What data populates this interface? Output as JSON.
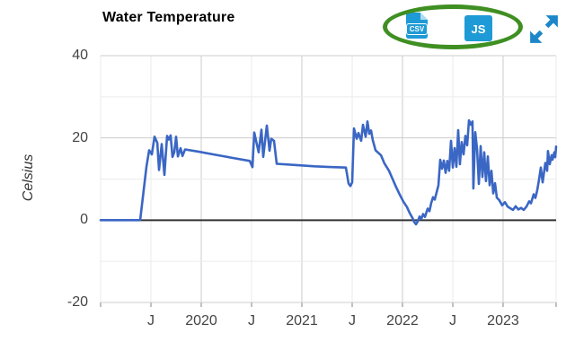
{
  "header": {
    "title": "Water Temperature"
  },
  "toolbar": {
    "csv_icon_label": "CSV",
    "js_icon_label": "JS",
    "icons": [
      "csv-file-icon",
      "js-file-icon",
      "expand-icon"
    ]
  },
  "colors": {
    "line": "#3a66c4",
    "grid_major": "#cccccc",
    "grid_minor": "#ebebeb",
    "zero_axis": "#333333",
    "label": "#444444",
    "icon_blue": "#1e9ad6",
    "expand_blue": "#1c86c8",
    "annotation_green": "#3f8f22",
    "title": "#000000",
    "tick": "#808080"
  },
  "chart_data": {
    "type": "line",
    "title": "Water Temperature",
    "xlabel": "",
    "ylabel": "Celsius",
    "xlim": [
      2019.0,
      2023.527
    ],
    "ylim": [
      -20,
      40
    ],
    "grid": true,
    "legend": "none",
    "y_ticks": [
      {
        "v": 40,
        "label": "40"
      },
      {
        "v": 20,
        "label": "20"
      },
      {
        "v": 0,
        "label": "0"
      },
      {
        "v": -20,
        "label": "-20"
      }
    ],
    "x_ticks": [
      {
        "t": 2019.5,
        "label": "J"
      },
      {
        "t": 2020.0,
        "label": "2020"
      },
      {
        "t": 2020.5,
        "label": "J"
      },
      {
        "t": 2021.0,
        "label": "2021"
      },
      {
        "t": 2021.5,
        "label": "J"
      },
      {
        "t": 2022.0,
        "label": "2022"
      },
      {
        "t": 2022.5,
        "label": "J"
      },
      {
        "t": 2023.0,
        "label": "2023"
      }
    ],
    "y_gridlines": [
      {
        "v": 40,
        "weight": "major"
      },
      {
        "v": 30,
        "weight": "minor"
      },
      {
        "v": 20,
        "weight": "major"
      },
      {
        "v": 10,
        "weight": "minor"
      },
      {
        "v": 0,
        "weight": "axis"
      },
      {
        "v": -10,
        "weight": "minor"
      },
      {
        "v": -20,
        "weight": "major"
      }
    ],
    "x_gridlines": [
      {
        "t": 2019.0,
        "weight": "minor"
      },
      {
        "t": 2019.5,
        "weight": "minor"
      },
      {
        "t": 2020.0,
        "weight": "major"
      },
      {
        "t": 2020.5,
        "weight": "minor"
      },
      {
        "t": 2021.0,
        "weight": "major"
      },
      {
        "t": 2021.5,
        "weight": "minor"
      },
      {
        "t": 2022.0,
        "weight": "major"
      },
      {
        "t": 2022.5,
        "weight": "minor"
      },
      {
        "t": 2023.0,
        "weight": "major"
      },
      {
        "t": 2023.527,
        "weight": "minor"
      }
    ],
    "series": [
      {
        "color": "#3a66c4",
        "points": [
          [
            2019.0,
            0
          ],
          [
            2019.1,
            0
          ],
          [
            2019.2,
            0
          ],
          [
            2019.3,
            0
          ],
          [
            2019.393,
            0
          ],
          [
            2019.455,
            13
          ],
          [
            2019.482,
            17
          ],
          [
            2019.509,
            16
          ],
          [
            2019.536,
            20.3
          ],
          [
            2019.563,
            18.8
          ],
          [
            2019.58,
            12.2
          ],
          [
            2019.607,
            18.5
          ],
          [
            2019.634,
            11
          ],
          [
            2019.661,
            20.5
          ],
          [
            2019.679,
            19.6
          ],
          [
            2019.696,
            20.6
          ],
          [
            2019.714,
            15.4
          ],
          [
            2019.732,
            16.5
          ],
          [
            2019.75,
            20.3
          ],
          [
            2019.768,
            15.5
          ],
          [
            2019.795,
            17.5
          ],
          [
            2019.813,
            15.6
          ],
          [
            2019.839,
            17.2
          ],
          [
            2019.964,
            16.7
          ],
          [
            2020.143,
            15.9
          ],
          [
            2020.321,
            15.1
          ],
          [
            2020.482,
            14.4
          ],
          [
            2020.509,
            12.9
          ],
          [
            2020.527,
            21.3
          ],
          [
            2020.571,
            16.5
          ],
          [
            2020.598,
            22.0
          ],
          [
            2020.616,
            15.4
          ],
          [
            2020.652,
            23.0
          ],
          [
            2020.679,
            16.9
          ],
          [
            2020.696,
            19.8
          ],
          [
            2020.723,
            19.3
          ],
          [
            2020.75,
            13.7
          ],
          [
            2020.946,
            13.4
          ],
          [
            2021.125,
            13.1
          ],
          [
            2021.304,
            12.9
          ],
          [
            2021.438,
            12.8
          ],
          [
            2021.464,
            8.9
          ],
          [
            2021.482,
            8.3
          ],
          [
            2021.5,
            9.2
          ],
          [
            2021.518,
            22.3
          ],
          [
            2021.545,
            19.8
          ],
          [
            2021.563,
            21.2
          ],
          [
            2021.589,
            19.3
          ],
          [
            2021.607,
            23.2
          ],
          [
            2021.634,
            20.3
          ],
          [
            2021.652,
            24.0
          ],
          [
            2021.67,
            21.0
          ],
          [
            2021.688,
            21.8
          ],
          [
            2021.705,
            19.5
          ],
          [
            2021.732,
            17.0
          ],
          [
            2021.786,
            15.8
          ],
          [
            2021.821,
            13.8
          ],
          [
            2021.866,
            12.0
          ],
          [
            2021.902,
            10.0
          ],
          [
            2021.938,
            8.0
          ],
          [
            2021.973,
            6.2
          ],
          [
            2022.009,
            4.5
          ],
          [
            2022.045,
            3.2
          ],
          [
            2022.071,
            1.8
          ],
          [
            2022.098,
            0.6
          ],
          [
            2022.116,
            -0.4
          ],
          [
            2022.134,
            -1.0
          ],
          [
            2022.152,
            -0.3
          ],
          [
            2022.17,
            0.9
          ],
          [
            2022.188,
            0.3
          ],
          [
            2022.205,
            1.5
          ],
          [
            2022.223,
            0.8
          ],
          [
            2022.25,
            2.8
          ],
          [
            2022.268,
            2.2
          ],
          [
            2022.286,
            4.2
          ],
          [
            2022.304,
            5.6
          ],
          [
            2022.321,
            5.0
          ],
          [
            2022.339,
            6.8
          ],
          [
            2022.357,
            8.5
          ],
          [
            2022.375,
            14.7
          ],
          [
            2022.393,
            12.5
          ],
          [
            2022.411,
            14.5
          ],
          [
            2022.429,
            11.5
          ],
          [
            2022.446,
            14.4
          ],
          [
            2022.464,
            12.0
          ],
          [
            2022.482,
            19.3
          ],
          [
            2022.5,
            12.8
          ],
          [
            2022.518,
            17.5
          ],
          [
            2022.536,
            13.0
          ],
          [
            2022.554,
            21.9
          ],
          [
            2022.571,
            13.6
          ],
          [
            2022.589,
            19.0
          ],
          [
            2022.607,
            16.0
          ],
          [
            2022.625,
            20.5
          ],
          [
            2022.643,
            18.2
          ],
          [
            2022.661,
            24.3
          ],
          [
            2022.679,
            23.2
          ],
          [
            2022.696,
            24.0
          ],
          [
            2022.705,
            7.7
          ],
          [
            2022.723,
            21.4
          ],
          [
            2022.741,
            17.3
          ],
          [
            2022.759,
            8.8
          ],
          [
            2022.777,
            18.0
          ],
          [
            2022.795,
            10.5
          ],
          [
            2022.813,
            16.5
          ],
          [
            2022.83,
            9.5
          ],
          [
            2022.848,
            15.5
          ],
          [
            2022.866,
            8.5
          ],
          [
            2022.884,
            12.0
          ],
          [
            2022.902,
            6.5
          ],
          [
            2022.92,
            9.0
          ],
          [
            2022.938,
            5.5
          ],
          [
            2022.964,
            4.8
          ],
          [
            2022.991,
            3.6
          ],
          [
            2023.018,
            4.4
          ],
          [
            2023.045,
            3.3
          ],
          [
            2023.071,
            2.9
          ],
          [
            2023.098,
            2.5
          ],
          [
            2023.125,
            3.4
          ],
          [
            2023.152,
            2.6
          ],
          [
            2023.179,
            3.0
          ],
          [
            2023.205,
            2.5
          ],
          [
            2023.232,
            3.3
          ],
          [
            2023.259,
            4.6
          ],
          [
            2023.277,
            4.1
          ],
          [
            2023.304,
            6.3
          ],
          [
            2023.321,
            5.4
          ],
          [
            2023.339,
            7.2
          ],
          [
            2023.357,
            9.9
          ],
          [
            2023.375,
            12.8
          ],
          [
            2023.393,
            9.2
          ],
          [
            2023.42,
            13.9
          ],
          [
            2023.438,
            12.0
          ],
          [
            2023.446,
            16.8
          ],
          [
            2023.464,
            13.6
          ],
          [
            2023.482,
            15.8
          ],
          [
            2023.491,
            14.7
          ],
          [
            2023.509,
            16.5
          ],
          [
            2023.518,
            15.3
          ],
          [
            2023.527,
            17.9
          ]
        ]
      }
    ]
  }
}
